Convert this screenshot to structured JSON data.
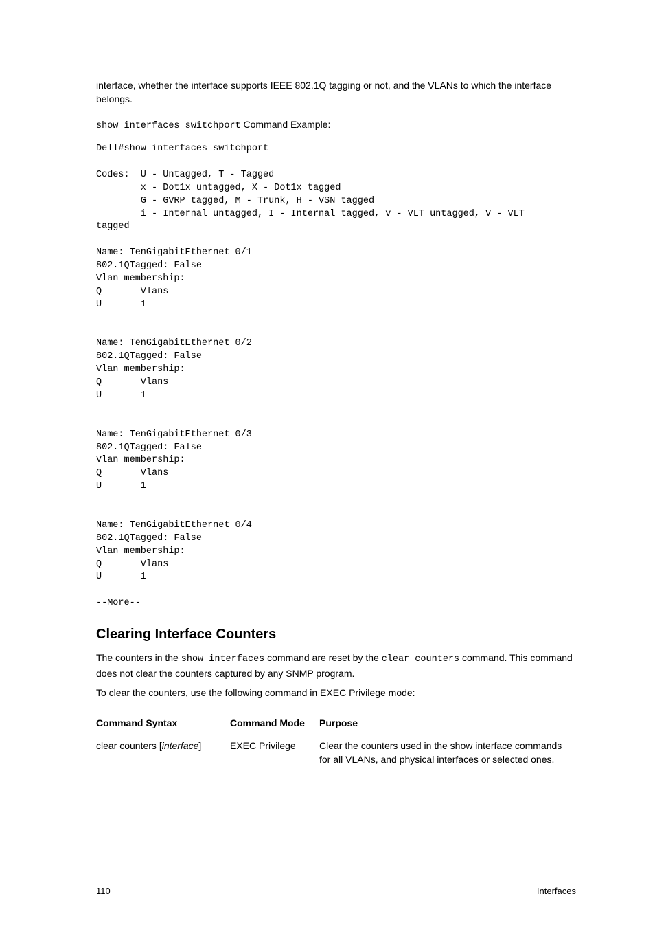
{
  "intro_paragraph": "interface, whether the interface supports IEEE 802.1Q tagging or not, and the VLANs to which the interface belongs.",
  "example_line": {
    "mono_part": "show interfaces switchport",
    "rest": " Command Example:"
  },
  "terminal_output": "Dell#show interfaces switchport\n\nCodes:  U - Untagged, T - Tagged\n        x - Dot1x untagged, X - Dot1x tagged\n        G - GVRP tagged, M - Trunk, H - VSN tagged\n        i - Internal untagged, I - Internal tagged, v - VLT untagged, V - VLT\ntagged\n\nName: TenGigabitEthernet 0/1\n802.1QTagged: False\nVlan membership:\nQ       Vlans\nU       1\n\n\nName: TenGigabitEthernet 0/2\n802.1QTagged: False\nVlan membership:\nQ       Vlans\nU       1\n\n\nName: TenGigabitEthernet 0/3\n802.1QTagged: False\nVlan membership:\nQ       Vlans\nU       1\n\n\nName: TenGigabitEthernet 0/4\n802.1QTagged: False\nVlan membership:\nQ       Vlans\nU       1\n\n--More--",
  "heading": "Clearing Interface Counters",
  "para1": {
    "p1": "The counters in the ",
    "m1": "show interfaces",
    "p2": " command are reset by the ",
    "m2": "clear counters",
    "p3": " command. This command does not clear the counters captured by any SNMP program."
  },
  "para2": "To clear the counters, use the following command in EXEC Privilege mode:",
  "table": {
    "headers": {
      "syntax": "Command Syntax",
      "mode": "Command Mode",
      "purpose": "Purpose"
    },
    "row": {
      "syntax_prefix": "clear counters [",
      "syntax_italic": "interface",
      "syntax_suffix": "]",
      "mode": "EXEC Privilege",
      "purpose": "Clear the counters used in the show interface commands for all VLANs, and physical interfaces or selected ones."
    }
  },
  "footer": {
    "page_number": "110",
    "section": "Interfaces"
  }
}
